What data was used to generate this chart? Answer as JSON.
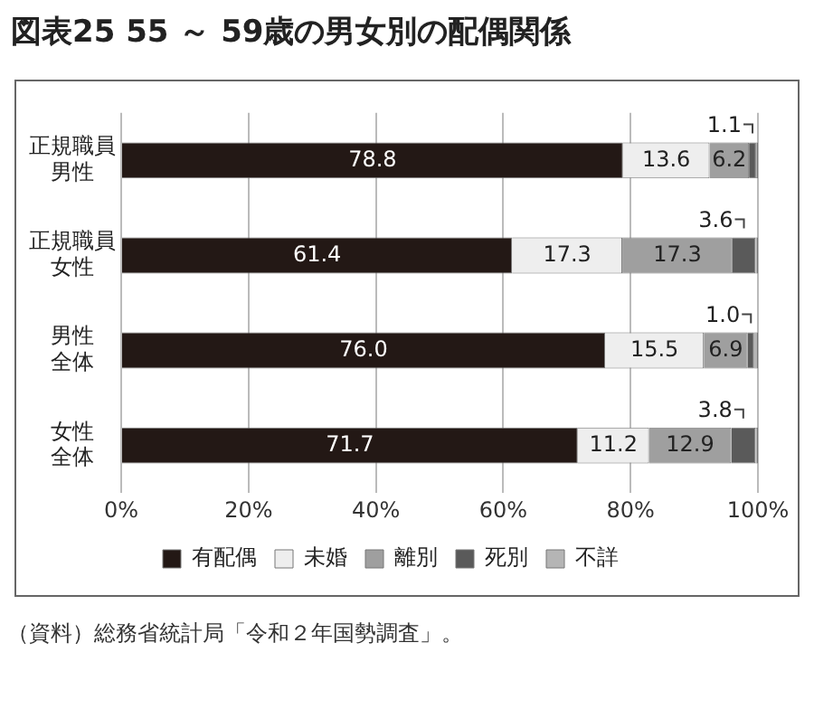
{
  "chart_data": {
    "type": "bar",
    "orientation": "horizontal",
    "stacked": true,
    "title": "図表25 55 ～ 59歳の男女別の配偶関係",
    "categories": [
      "正規職員男性",
      "正規職員女性",
      "男性全体",
      "女性全体"
    ],
    "series": [
      {
        "name": "有配偶",
        "color": "#231815",
        "values": [
          78.8,
          61.4,
          76.0,
          71.7
        ],
        "value_labels": [
          "78.8",
          "61.4",
          "76.0",
          "71.7"
        ]
      },
      {
        "name": "未婚",
        "color": "#eeeeee",
        "values": [
          13.6,
          17.3,
          15.5,
          11.2
        ],
        "value_labels": [
          "13.6",
          "17.3",
          "15.5",
          "11.2"
        ]
      },
      {
        "name": "離別",
        "color": "#9f9f9f",
        "values": [
          6.2,
          17.3,
          6.9,
          12.9
        ],
        "value_labels": [
          "6.2",
          "17.3",
          "6.9",
          "12.9"
        ]
      },
      {
        "name": "死別",
        "color": "#5a5a5a",
        "values": [
          1.1,
          3.6,
          1.0,
          3.8
        ],
        "value_labels": [
          "1.1",
          "3.6",
          "1.0",
          "3.8"
        ]
      },
      {
        "name": "不詳",
        "color": "#b5b5b5",
        "values": [
          0.3,
          0.4,
          0.6,
          0.4
        ],
        "value_labels": [
          null,
          null,
          null,
          null
        ]
      }
    ],
    "xlim": [
      0,
      100
    ],
    "xticks": [
      {
        "value": 0,
        "label": "0%"
      },
      {
        "value": 20,
        "label": "20%"
      },
      {
        "value": 40,
        "label": "40%"
      },
      {
        "value": 60,
        "label": "60%"
      },
      {
        "value": 80,
        "label": "80%"
      },
      {
        "value": 100,
        "label": "100%"
      }
    ],
    "grid": "x",
    "legend": "bottom",
    "annotations": [
      "（資料）総務省統計局「令和２年国勢調査」。"
    ]
  }
}
